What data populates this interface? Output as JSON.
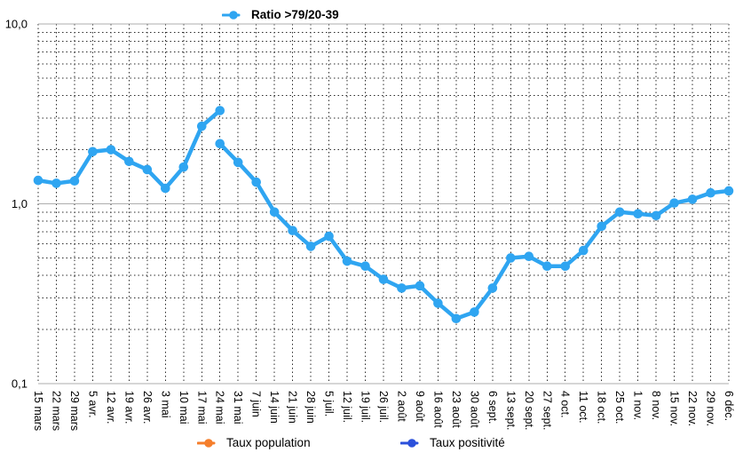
{
  "legend_top": {
    "label": "Ratio >79/20-39",
    "color": "#2FA5F1"
  },
  "legend_bottom": [
    {
      "label": "Taux population",
      "color": "#F57E2B"
    },
    {
      "label": "Taux positivité",
      "color": "#2B50DB"
    }
  ],
  "chart_data": {
    "type": "line",
    "title": "Ratio >79/20-39",
    "y_scale": "log",
    "ylim": [
      0.1,
      10
    ],
    "grid": "dotted minor log gridlines; solid gray lines at 10, 1 and 0.1; dotted vertical line at every category",
    "legend_position": "top (active series), bottom (hidden series)",
    "y_axis": {
      "ticks": [
        {
          "label": "10,0",
          "value": 10
        },
        {
          "label": "1,0",
          "value": 1
        },
        {
          "label": "0,1",
          "value": 0.1
        }
      ]
    },
    "y_minor_gridlines": [
      0.2,
      0.3,
      0.4,
      0.5,
      0.6,
      0.7,
      0.8,
      0.9,
      2,
      3,
      4,
      5,
      6,
      7,
      8,
      9
    ],
    "categories": [
      "15 mars",
      "22 mars",
      "29 mars",
      "5 avr.",
      "12 avr.",
      "19 avr.",
      "26 avr.",
      "3 mai",
      "10 mai",
      "17 mai",
      "24 mai",
      "31 mai",
      "7 juin",
      "14 juin",
      "21 juin",
      "28 juin",
      "5 juil.",
      "12 juil.",
      "19 juil.",
      "26 juil.",
      "2 août",
      "9 août",
      "16 août",
      "23 août",
      "30 août",
      "6 sept.",
      "13 sept.",
      "20 sept.",
      "27 sept.",
      "4 oct.",
      "11 oct.",
      "18 oct.",
      "25 oct.",
      "1 nov.",
      "8 nov.",
      "15 nov.",
      "22 nov.",
      "29 nov.",
      "6 déc."
    ],
    "series": [
      {
        "name": "Ratio >79/20-39",
        "color": "#2FA5F1",
        "note": "line is broken at 24 mai where two values are plotted (spike to 3.30, restart at 2.16)",
        "segments": [
          {
            "start_index": 0,
            "values": [
              1.35,
              1.3,
              1.34,
              1.95,
              2.0,
              1.72,
              1.55,
              1.22,
              1.6,
              2.7,
              3.3
            ]
          },
          {
            "start_index": 10,
            "values": [
              2.16,
              1.7,
              1.32,
              0.9,
              0.71,
              0.58,
              0.66,
              0.48,
              0.45,
              0.38,
              0.34,
              0.35,
              0.28,
              0.23,
              0.25,
              0.34,
              0.5,
              0.51,
              0.45,
              0.45,
              0.55,
              0.75,
              0.9,
              0.88,
              0.86,
              1.01,
              1.06,
              1.15,
              1.18
            ]
          }
        ]
      },
      {
        "name": "Taux population",
        "color": "#F57E2B",
        "segments": []
      },
      {
        "name": "Taux positivité",
        "color": "#2B50DB",
        "segments": []
      }
    ]
  }
}
